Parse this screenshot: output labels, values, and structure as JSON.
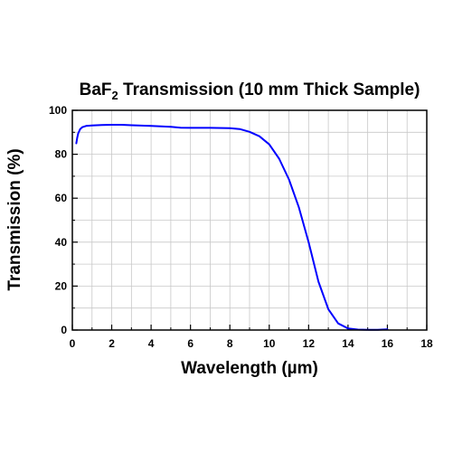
{
  "chart_data": {
    "type": "line",
    "title": {
      "part1": "BaF",
      "subscript": "2",
      "part2": " Transmission (10 mm Thick Sample)"
    },
    "xlabel": "Wavelength (µm)",
    "ylabel": "Transmission (%)",
    "xlim": [
      0,
      18
    ],
    "ylim": [
      0,
      100
    ],
    "xticks": [
      0,
      2,
      4,
      6,
      8,
      10,
      12,
      14,
      16,
      18
    ],
    "yticks": [
      0,
      20,
      40,
      60,
      80,
      100
    ],
    "xtick_labels": [
      "0",
      "2",
      "4",
      "6",
      "8",
      "10",
      "12",
      "14",
      "16",
      "18"
    ],
    "ytick_labels": [
      "0",
      "20",
      "40",
      "60",
      "80",
      "100"
    ],
    "grid": true,
    "line_color": "#0000ff",
    "grid_color": "#c8c8c8",
    "series": [
      {
        "x": [
          0.2,
          0.25,
          0.3,
          0.4,
          0.5,
          0.7,
          1.0,
          1.5,
          2.0,
          2.5,
          3.0,
          4.0,
          5.0,
          5.5,
          6.0,
          7.0,
          8.0,
          8.5,
          9.0,
          9.5,
          10.0,
          10.5,
          11.0,
          11.5,
          12.0,
          12.5,
          13.0,
          13.5,
          14.0,
          14.5,
          15.0,
          15.5,
          16.0
        ],
        "y": [
          85.0,
          87.5,
          89.5,
          91.5,
          92.3,
          92.9,
          93.1,
          93.3,
          93.4,
          93.4,
          93.2,
          92.9,
          92.5,
          92.1,
          92.0,
          92.0,
          91.9,
          91.5,
          90.2,
          88.2,
          84.5,
          78.0,
          68.5,
          56.0,
          40.0,
          22.0,
          9.5,
          3.0,
          0.7,
          0.2,
          0.1,
          0.1,
          0.3
        ]
      }
    ]
  }
}
